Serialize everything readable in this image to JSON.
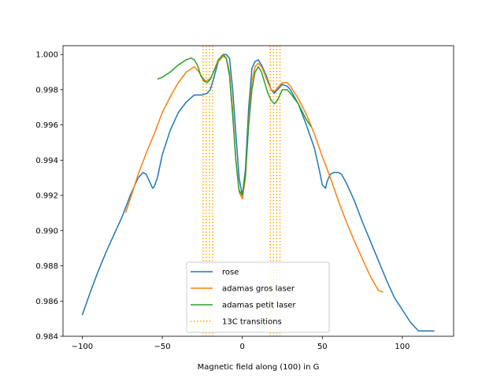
{
  "chart_data": {
    "type": "line",
    "title": "",
    "xlabel": "Magnetic field along (100) in G",
    "ylabel": "",
    "xlim": [
      -112,
      132
    ],
    "ylim": [
      0.984,
      1.0005
    ],
    "xticks": [
      -100,
      -50,
      0,
      50,
      100
    ],
    "yticks": [
      0.984,
      0.986,
      0.988,
      0.99,
      0.992,
      0.994,
      0.996,
      0.998,
      1.0
    ],
    "ytick_labels": [
      "0.984",
      "0.986",
      "0.988",
      "0.990",
      "0.992",
      "0.994",
      "0.996",
      "0.998",
      "1.000"
    ],
    "legend_position": "lower-center",
    "series": [
      {
        "name": "rose",
        "color": "#1f77b4",
        "x": [
          -100,
          -95,
          -90,
          -85,
          -80,
          -75,
          -70,
          -65,
          -62,
          -60,
          -58,
          -56,
          -55,
          -53,
          -50,
          -45,
          -40,
          -35,
          -30,
          -25,
          -22,
          -20,
          -18,
          -15,
          -12,
          -10,
          -8,
          -6,
          -4,
          -2,
          0,
          2,
          4,
          6,
          8,
          10,
          12,
          15,
          18,
          20,
          22,
          25,
          28,
          30,
          35,
          40,
          45,
          48,
          50,
          52,
          53,
          55,
          57,
          58,
          60,
          62,
          65,
          70,
          75,
          80,
          85,
          90,
          95,
          100,
          105,
          110,
          115,
          118,
          120
        ],
        "y": [
          0.9852,
          0.9865,
          0.9877,
          0.9888,
          0.9898,
          0.9908,
          0.992,
          0.993,
          0.9933,
          0.9932,
          0.9928,
          0.9924,
          0.9925,
          0.993,
          0.9943,
          0.9957,
          0.9967,
          0.9973,
          0.9977,
          0.9977,
          0.9978,
          0.998,
          0.9986,
          0.9996,
          1.0,
          1.0,
          0.9998,
          0.998,
          0.9955,
          0.993,
          0.992,
          0.9935,
          0.997,
          0.9992,
          0.9996,
          0.9997,
          0.9994,
          0.9988,
          0.998,
          0.9978,
          0.998,
          0.9983,
          0.9982,
          0.998,
          0.9972,
          0.996,
          0.9947,
          0.9935,
          0.9926,
          0.9924,
          0.9928,
          0.9932,
          0.9933,
          0.9933,
          0.9933,
          0.9932,
          0.9927,
          0.9917,
          0.9905,
          0.9894,
          0.9883,
          0.9872,
          0.9862,
          0.9855,
          0.9848,
          0.9843,
          0.9843,
          0.9843,
          0.9843
        ]
      },
      {
        "name": "adamas gros laser",
        "color": "#ff7f0e",
        "x": [
          -73,
          -70,
          -65,
          -60,
          -55,
          -50,
          -45,
          -40,
          -35,
          -30,
          -27,
          -25,
          -23,
          -20,
          -18,
          -15,
          -12,
          -10,
          -8,
          -6,
          -4,
          -2,
          0,
          2,
          4,
          6,
          8,
          10,
          12,
          14,
          16,
          18,
          20,
          22,
          25,
          28,
          30,
          35,
          40,
          45,
          50,
          55,
          60,
          65,
          70,
          75,
          80,
          85,
          88
        ],
        "y": [
          0.991,
          0.9918,
          0.9932,
          0.9944,
          0.9955,
          0.9967,
          0.9976,
          0.9984,
          0.999,
          0.9993,
          0.999,
          0.9987,
          0.9985,
          0.9986,
          0.999,
          0.9996,
          0.9999,
          0.9998,
          0.999,
          0.9968,
          0.994,
          0.9922,
          0.9918,
          0.993,
          0.9962,
          0.9985,
          0.9993,
          0.9995,
          0.9993,
          0.9989,
          0.9984,
          0.998,
          0.9979,
          0.9981,
          0.9984,
          0.9984,
          0.9982,
          0.9975,
          0.9966,
          0.9955,
          0.9942,
          0.993,
          0.9917,
          0.9905,
          0.9894,
          0.9884,
          0.9874,
          0.9866,
          0.9865
        ]
      },
      {
        "name": "adamas petit laser",
        "color": "#2ca02c",
        "x": [
          -53,
          -50,
          -45,
          -40,
          -35,
          -32,
          -30,
          -28,
          -26,
          -24,
          -22,
          -20,
          -18,
          -15,
          -12,
          -10,
          -8,
          -6,
          -4,
          -2,
          0,
          2,
          4,
          6,
          8,
          10,
          12,
          14,
          16,
          18,
          20,
          22,
          25,
          28,
          30,
          35,
          40,
          43
        ],
        "y": [
          0.9986,
          0.9987,
          0.999,
          0.9994,
          0.9997,
          0.9998,
          0.9997,
          0.9994,
          0.9988,
          0.9985,
          0.9984,
          0.9986,
          0.999,
          0.9997,
          1.0,
          0.9998,
          0.9988,
          0.9965,
          0.994,
          0.9923,
          0.992,
          0.9932,
          0.996,
          0.998,
          0.999,
          0.9993,
          0.999,
          0.9984,
          0.9978,
          0.9974,
          0.9972,
          0.9974,
          0.998,
          0.998,
          0.9978,
          0.9972,
          0.9963,
          0.9959
        ]
      }
    ],
    "transitions": {
      "name": "13C transitions",
      "color": "#ffa500",
      "x": [
        -24.5,
        -22.5,
        -20.5,
        -18.5,
        17.5,
        19.5,
        21.5,
        23.5
      ]
    }
  }
}
